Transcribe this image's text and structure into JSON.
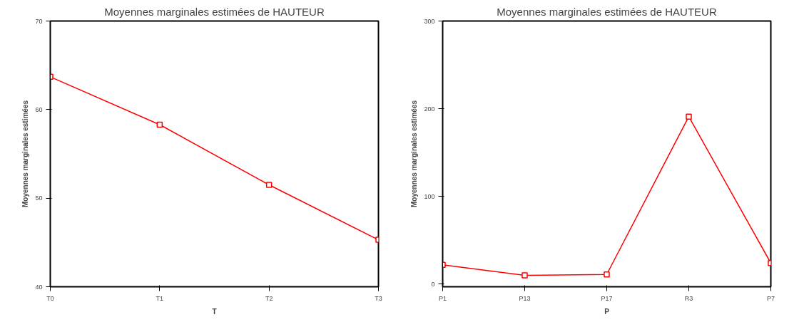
{
  "chart_data": [
    {
      "type": "line",
      "title": "Moyennes marginales estimées de HAUTEUR",
      "xlabel": "T",
      "ylabel": "Moyennes marginales estimées",
      "categories": [
        "T0",
        "T1",
        "T2",
        "T3"
      ],
      "ylim": [
        40,
        70
      ],
      "yticks": [
        40,
        50,
        60,
        70
      ],
      "marker": "square",
      "grid": false,
      "series": [
        {
          "color": "#ff0000",
          "values": [
            63.7,
            58.3,
            51.5,
            45.3
          ]
        }
      ]
    },
    {
      "type": "line",
      "title": "Moyennes marginales estimées de HAUTEUR",
      "xlabel": "P",
      "ylabel": "Moyennes marginales estimées",
      "categories": [
        "P1",
        "P13",
        "P17",
        "R3",
        "P7"
      ],
      "ylim": [
        -3,
        300
      ],
      "yticks": [
        0,
        100,
        200,
        300
      ],
      "marker": "square",
      "grid": false,
      "series": [
        {
          "color": "#ff0000",
          "values": [
            22,
            10,
            11,
            191,
            24
          ]
        }
      ]
    }
  ]
}
